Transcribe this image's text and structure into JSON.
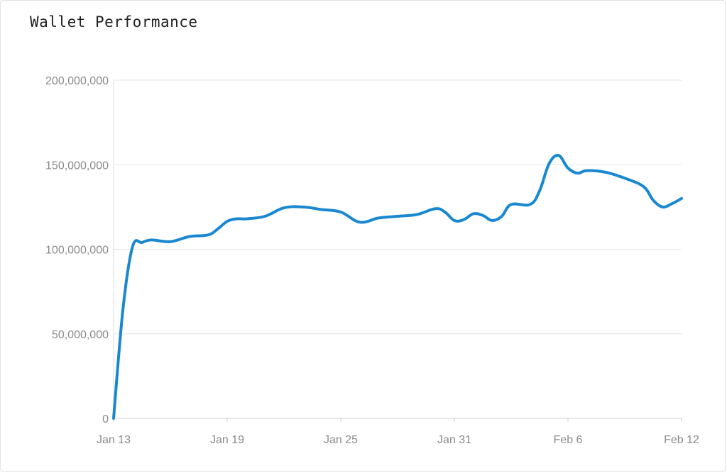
{
  "title": "Wallet Performance",
  "chart_data": {
    "type": "line",
    "title": "Wallet Performance",
    "xlabel": "",
    "ylabel": "",
    "ylim": [
      0,
      200000000
    ],
    "y_ticks": [
      0,
      50000000,
      100000000,
      150000000,
      200000000
    ],
    "y_tick_labels": [
      "0",
      "50,000,000",
      "100,000,000",
      "150,000,000",
      "200,000,000"
    ],
    "x_ticks": [
      "2024-01-13",
      "2024-01-19",
      "2024-01-25",
      "2024-01-31",
      "2024-02-06",
      "2024-02-12"
    ],
    "x_tick_labels": [
      "Jan 13",
      "Jan 19",
      "Jan 25",
      "Jan 31",
      "Feb 6",
      "Feb 12"
    ],
    "xlim": [
      "2024-01-13",
      "2024-02-12"
    ],
    "grid": true,
    "color": "#1a88d0",
    "series": [
      {
        "x": [
          "2024-01-13",
          "2024-01-13T12:00",
          "2024-01-14",
          "2024-01-14T12:00",
          "2024-01-15",
          "2024-01-16",
          "2024-01-17",
          "2024-01-18",
          "2024-01-18T12:00",
          "2024-01-19",
          "2024-01-19T12:00",
          "2024-01-20",
          "2024-01-21",
          "2024-01-22",
          "2024-01-23",
          "2024-01-24",
          "2024-01-25",
          "2024-01-26",
          "2024-01-27",
          "2024-01-28",
          "2024-01-29",
          "2024-01-30",
          "2024-01-30T12:00",
          "2024-01-31",
          "2024-01-31T12:00",
          "2024-02-01",
          "2024-02-01T12:00",
          "2024-02-02",
          "2024-02-02T12:00",
          "2024-02-03",
          "2024-02-04",
          "2024-02-04T12:00",
          "2024-02-05",
          "2024-02-05T12:00",
          "2024-02-06",
          "2024-02-06T12:00",
          "2024-02-07",
          "2024-02-08",
          "2024-02-09",
          "2024-02-10",
          "2024-02-10T12:00",
          "2024-02-11",
          "2024-02-11T12:00",
          "2024-02-12"
        ],
        "values": [
          0,
          65000000,
          101500000,
          104000000,
          105500000,
          104500000,
          107500000,
          108500000,
          112000000,
          116500000,
          118000000,
          118000000,
          119500000,
          124500000,
          125000000,
          123500000,
          122000000,
          116000000,
          118500000,
          119500000,
          120500000,
          124000000,
          122000000,
          117000000,
          117500000,
          121000000,
          120000000,
          117000000,
          119500000,
          126500000,
          126500000,
          134500000,
          150500000,
          155500000,
          148000000,
          145000000,
          146500000,
          145500000,
          142000000,
          137000000,
          129000000,
          125000000,
          127000000,
          130000000
        ]
      }
    ]
  }
}
